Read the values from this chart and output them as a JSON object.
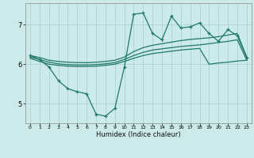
{
  "xlabel": "Humidex (Indice chaleur)",
  "bg_color": "#cceaea",
  "grid_color": "#aad4d4",
  "line_color": "#207868",
  "x": [
    0,
    1,
    2,
    3,
    4,
    5,
    6,
    7,
    8,
    9,
    10,
    11,
    12,
    13,
    14,
    15,
    16,
    17,
    18,
    19,
    20,
    21,
    22,
    23
  ],
  "line_spiky": [
    6.22,
    6.12,
    5.93,
    5.58,
    5.38,
    5.3,
    5.25,
    4.73,
    4.68,
    4.88,
    5.92,
    7.27,
    7.3,
    6.78,
    6.62,
    7.22,
    6.92,
    6.95,
    7.05,
    6.78,
    6.58,
    6.88,
    6.72,
    6.17
  ],
  "line_upper": [
    6.22,
    6.17,
    6.1,
    6.07,
    6.05,
    6.04,
    6.04,
    6.05,
    6.07,
    6.1,
    6.18,
    6.32,
    6.42,
    6.48,
    6.52,
    6.56,
    6.6,
    6.63,
    6.65,
    6.67,
    6.7,
    6.74,
    6.78,
    6.18
  ],
  "line_mid": [
    6.18,
    6.12,
    6.05,
    6.01,
    5.99,
    5.98,
    5.98,
    5.99,
    6.01,
    6.04,
    6.12,
    6.22,
    6.3,
    6.36,
    6.39,
    6.42,
    6.45,
    6.47,
    6.49,
    6.52,
    6.55,
    6.58,
    6.62,
    6.1
  ],
  "line_lower": [
    6.15,
    6.07,
    6.0,
    5.97,
    5.95,
    5.94,
    5.94,
    5.95,
    5.97,
    6.0,
    6.07,
    6.15,
    6.22,
    6.27,
    6.3,
    6.33,
    6.36,
    6.38,
    6.4,
    6.0,
    6.03,
    6.05,
    6.08,
    6.1
  ],
  "ylim": [
    4.5,
    7.55
  ],
  "yticks": [
    5,
    6,
    7
  ],
  "xticks": [
    0,
    1,
    2,
    3,
    4,
    5,
    6,
    7,
    8,
    9,
    10,
    11,
    12,
    13,
    14,
    15,
    16,
    17,
    18,
    19,
    20,
    21,
    22,
    23
  ]
}
